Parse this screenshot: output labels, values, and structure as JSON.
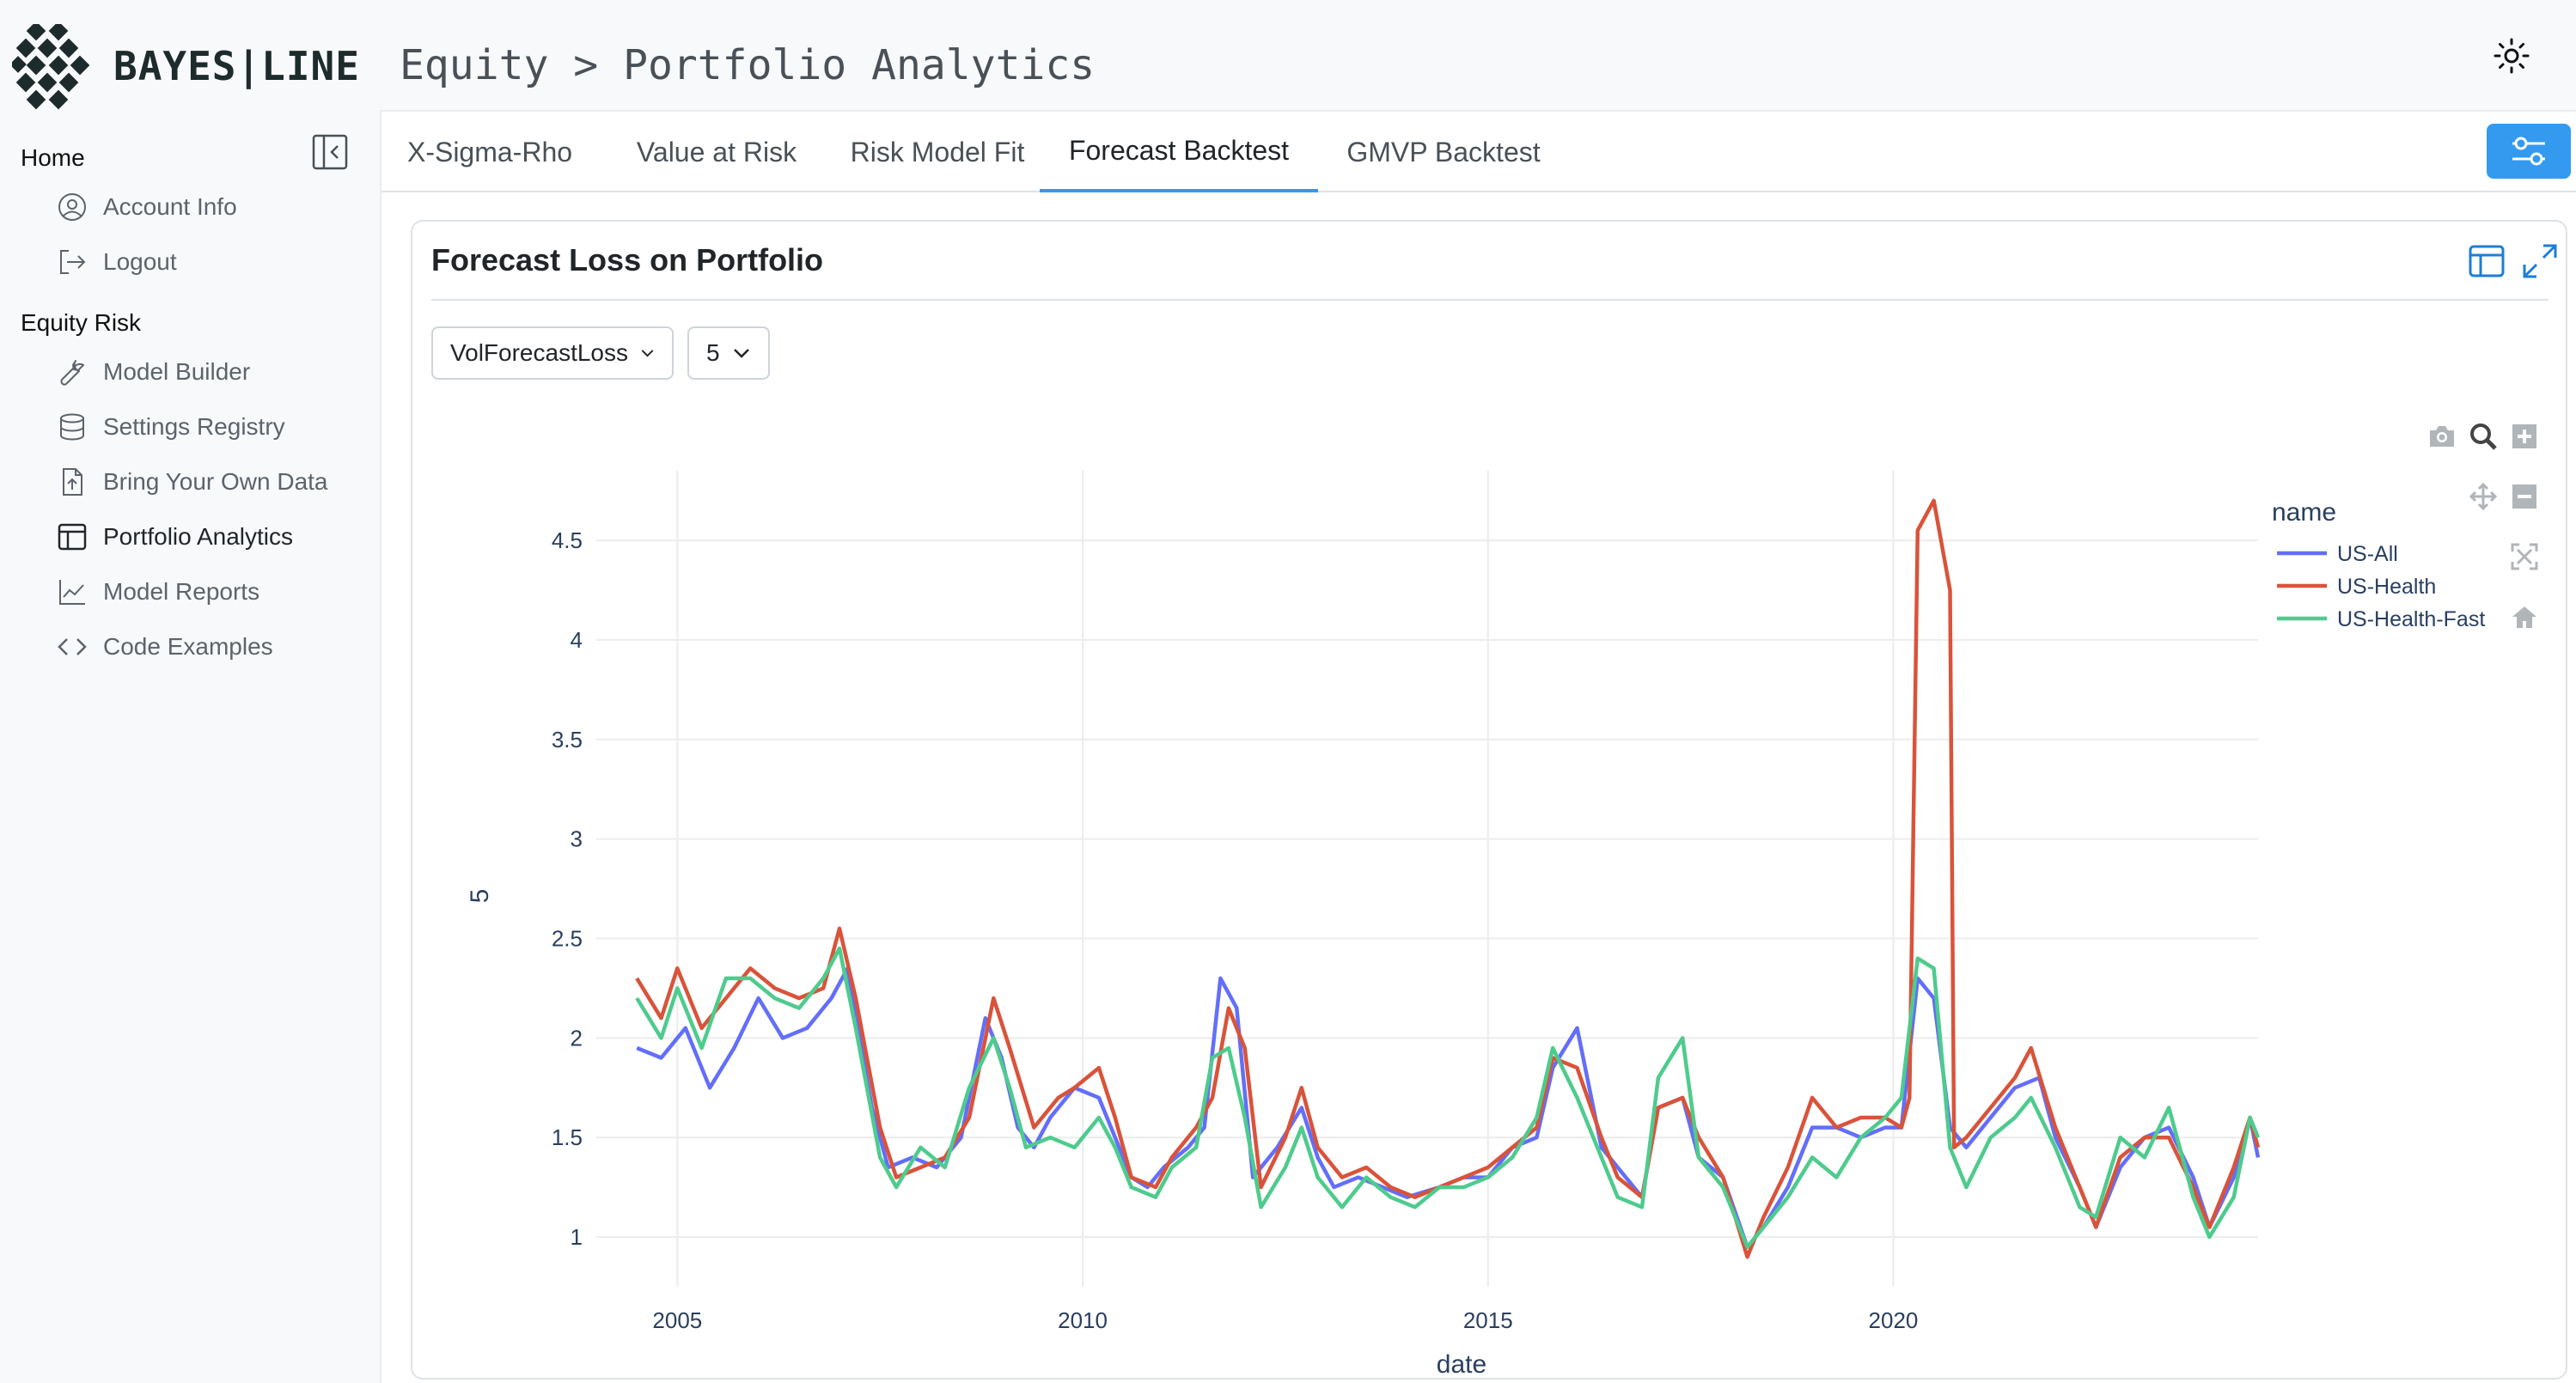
{
  "app": {
    "brand": "BAYES|LINE",
    "breadcrumb": "Equity > Portfolio Analytics"
  },
  "sidebar": {
    "sections": [
      {
        "heading": "Home",
        "items": [
          {
            "label": "Account Info",
            "icon": "user-circle-icon"
          },
          {
            "label": "Logout",
            "icon": "logout-icon"
          }
        ]
      },
      {
        "heading": "Equity Risk",
        "items": [
          {
            "label": "Model Builder",
            "icon": "wrench-icon"
          },
          {
            "label": "Settings Registry",
            "icon": "database-icon"
          },
          {
            "label": "Bring Your Own Data",
            "icon": "file-upload-icon"
          },
          {
            "label": "Portfolio Analytics",
            "icon": "table-icon",
            "active": true
          },
          {
            "label": "Model Reports",
            "icon": "line-chart-icon"
          },
          {
            "label": "Code Examples",
            "icon": "code-icon"
          }
        ]
      }
    ]
  },
  "tabs": [
    {
      "label": "X-Sigma-Rho"
    },
    {
      "label": "Value at Risk"
    },
    {
      "label": "Risk Model Fit"
    },
    {
      "label": "Forecast Backtest",
      "active": true
    },
    {
      "label": "GMVP Backtest"
    }
  ],
  "card": {
    "title": "Forecast Loss on Portfolio",
    "metric_select": "VolForecastLoss",
    "window_select": "5"
  },
  "colors": {
    "accent": "#339af0",
    "us_all": "#636efa",
    "us_health": "#d9533a",
    "us_health_fast": "#4ecb8d"
  },
  "chart_data": {
    "type": "line",
    "title": "",
    "xlabel": "date",
    "ylabel": "5",
    "legend_title": "name",
    "legend_placement": "top-right",
    "x_ticks": [
      "2005",
      "2010",
      "2015",
      "2020"
    ],
    "y_ticks": [
      "1",
      "1.5",
      "2",
      "2.5",
      "3",
      "3.5",
      "4",
      "4.5"
    ],
    "xlim": [
      2004.0,
      2024.5
    ],
    "ylim": [
      0.75,
      4.85
    ],
    "grid": true,
    "series": [
      {
        "name": "US-All",
        "color": "#636efa",
        "points": [
          [
            2004.5,
            1.95
          ],
          [
            2004.8,
            1.9
          ],
          [
            2005.1,
            2.05
          ],
          [
            2005.4,
            1.75
          ],
          [
            2005.7,
            1.95
          ],
          [
            2006.0,
            2.2
          ],
          [
            2006.3,
            2.0
          ],
          [
            2006.6,
            2.05
          ],
          [
            2006.9,
            2.2
          ],
          [
            2007.1,
            2.35
          ],
          [
            2007.4,
            1.65
          ],
          [
            2007.6,
            1.35
          ],
          [
            2007.9,
            1.4
          ],
          [
            2008.2,
            1.35
          ],
          [
            2008.5,
            1.5
          ],
          [
            2008.8,
            2.1
          ],
          [
            2009.0,
            1.9
          ],
          [
            2009.2,
            1.55
          ],
          [
            2009.4,
            1.45
          ],
          [
            2009.6,
            1.6
          ],
          [
            2009.9,
            1.75
          ],
          [
            2010.2,
            1.7
          ],
          [
            2010.4,
            1.5
          ],
          [
            2010.6,
            1.3
          ],
          [
            2010.8,
            1.25
          ],
          [
            2011.0,
            1.35
          ],
          [
            2011.3,
            1.45
          ],
          [
            2011.5,
            1.55
          ],
          [
            2011.7,
            2.3
          ],
          [
            2011.9,
            2.15
          ],
          [
            2012.1,
            1.3
          ],
          [
            2012.4,
            1.45
          ],
          [
            2012.7,
            1.65
          ],
          [
            2012.9,
            1.4
          ],
          [
            2013.1,
            1.25
          ],
          [
            2013.4,
            1.3
          ],
          [
            2013.7,
            1.25
          ],
          [
            2014.0,
            1.2
          ],
          [
            2014.4,
            1.25
          ],
          [
            2014.7,
            1.3
          ],
          [
            2015.0,
            1.3
          ],
          [
            2015.3,
            1.45
          ],
          [
            2015.6,
            1.5
          ],
          [
            2015.8,
            1.85
          ],
          [
            2016.1,
            2.05
          ],
          [
            2016.4,
            1.45
          ],
          [
            2016.7,
            1.3
          ],
          [
            2016.9,
            1.2
          ],
          [
            2017.1,
            1.65
          ],
          [
            2017.4,
            1.7
          ],
          [
            2017.6,
            1.4
          ],
          [
            2017.9,
            1.3
          ],
          [
            2018.2,
            0.95
          ],
          [
            2018.4,
            1.05
          ],
          [
            2018.7,
            1.25
          ],
          [
            2019.0,
            1.55
          ],
          [
            2019.3,
            1.55
          ],
          [
            2019.6,
            1.5
          ],
          [
            2019.9,
            1.55
          ],
          [
            2020.1,
            1.55
          ],
          [
            2020.3,
            2.3
          ],
          [
            2020.5,
            2.2
          ],
          [
            2020.7,
            1.55
          ],
          [
            2020.9,
            1.45
          ],
          [
            2021.2,
            1.6
          ],
          [
            2021.5,
            1.75
          ],
          [
            2021.8,
            1.8
          ],
          [
            2022.0,
            1.5
          ],
          [
            2022.3,
            1.25
          ],
          [
            2022.5,
            1.05
          ],
          [
            2022.8,
            1.35
          ],
          [
            2023.1,
            1.5
          ],
          [
            2023.4,
            1.55
          ],
          [
            2023.7,
            1.3
          ],
          [
            2023.9,
            1.05
          ],
          [
            2024.2,
            1.3
          ],
          [
            2024.4,
            1.6
          ],
          [
            2024.5,
            1.4
          ]
        ]
      },
      {
        "name": "US-Health",
        "color": "#d9533a",
        "points": [
          [
            2004.5,
            2.3
          ],
          [
            2004.8,
            2.1
          ],
          [
            2005.0,
            2.35
          ],
          [
            2005.3,
            2.05
          ],
          [
            2005.6,
            2.2
          ],
          [
            2005.9,
            2.35
          ],
          [
            2006.2,
            2.25
          ],
          [
            2006.5,
            2.2
          ],
          [
            2006.8,
            2.25
          ],
          [
            2007.0,
            2.55
          ],
          [
            2007.2,
            2.2
          ],
          [
            2007.5,
            1.55
          ],
          [
            2007.7,
            1.3
          ],
          [
            2008.0,
            1.35
          ],
          [
            2008.3,
            1.4
          ],
          [
            2008.6,
            1.6
          ],
          [
            2008.9,
            2.2
          ],
          [
            2009.1,
            1.95
          ],
          [
            2009.4,
            1.55
          ],
          [
            2009.7,
            1.7
          ],
          [
            2009.9,
            1.75
          ],
          [
            2010.2,
            1.85
          ],
          [
            2010.4,
            1.6
          ],
          [
            2010.6,
            1.3
          ],
          [
            2010.9,
            1.25
          ],
          [
            2011.1,
            1.4
          ],
          [
            2011.4,
            1.55
          ],
          [
            2011.6,
            1.7
          ],
          [
            2011.8,
            2.15
          ],
          [
            2012.0,
            1.95
          ],
          [
            2012.2,
            1.25
          ],
          [
            2012.5,
            1.5
          ],
          [
            2012.7,
            1.75
          ],
          [
            2012.9,
            1.45
          ],
          [
            2013.2,
            1.3
          ],
          [
            2013.5,
            1.35
          ],
          [
            2013.8,
            1.25
          ],
          [
            2014.1,
            1.2
          ],
          [
            2014.4,
            1.25
          ],
          [
            2014.7,
            1.3
          ],
          [
            2015.0,
            1.35
          ],
          [
            2015.3,
            1.45
          ],
          [
            2015.6,
            1.55
          ],
          [
            2015.8,
            1.9
          ],
          [
            2016.1,
            1.85
          ],
          [
            2016.4,
            1.5
          ],
          [
            2016.6,
            1.3
          ],
          [
            2016.9,
            1.2
          ],
          [
            2017.1,
            1.65
          ],
          [
            2017.4,
            1.7
          ],
          [
            2017.6,
            1.5
          ],
          [
            2017.9,
            1.3
          ],
          [
            2018.2,
            0.9
          ],
          [
            2018.4,
            1.1
          ],
          [
            2018.7,
            1.35
          ],
          [
            2019.0,
            1.7
          ],
          [
            2019.3,
            1.55
          ],
          [
            2019.6,
            1.6
          ],
          [
            2019.9,
            1.6
          ],
          [
            2020.1,
            1.55
          ],
          [
            2020.2,
            1.7
          ],
          [
            2020.3,
            4.55
          ],
          [
            2020.5,
            4.7
          ],
          [
            2020.7,
            4.25
          ],
          [
            2020.75,
            1.45
          ],
          [
            2020.9,
            1.5
          ],
          [
            2021.2,
            1.65
          ],
          [
            2021.5,
            1.8
          ],
          [
            2021.7,
            1.95
          ],
          [
            2022.0,
            1.55
          ],
          [
            2022.3,
            1.25
          ],
          [
            2022.5,
            1.05
          ],
          [
            2022.8,
            1.4
          ],
          [
            2023.1,
            1.5
          ],
          [
            2023.4,
            1.5
          ],
          [
            2023.7,
            1.25
          ],
          [
            2023.9,
            1.05
          ],
          [
            2024.2,
            1.35
          ],
          [
            2024.4,
            1.6
          ],
          [
            2024.5,
            1.45
          ]
        ]
      },
      {
        "name": "US-Health-Fast",
        "color": "#4ecb8d",
        "points": [
          [
            2004.5,
            2.2
          ],
          [
            2004.8,
            2.0
          ],
          [
            2005.0,
            2.25
          ],
          [
            2005.3,
            1.95
          ],
          [
            2005.6,
            2.3
          ],
          [
            2005.9,
            2.3
          ],
          [
            2006.2,
            2.2
          ],
          [
            2006.5,
            2.15
          ],
          [
            2006.8,
            2.3
          ],
          [
            2007.0,
            2.45
          ],
          [
            2007.2,
            2.05
          ],
          [
            2007.5,
            1.4
          ],
          [
            2007.7,
            1.25
          ],
          [
            2008.0,
            1.45
          ],
          [
            2008.3,
            1.35
          ],
          [
            2008.6,
            1.75
          ],
          [
            2008.9,
            2.0
          ],
          [
            2009.1,
            1.75
          ],
          [
            2009.3,
            1.45
          ],
          [
            2009.6,
            1.5
          ],
          [
            2009.9,
            1.45
          ],
          [
            2010.2,
            1.6
          ],
          [
            2010.4,
            1.45
          ],
          [
            2010.6,
            1.25
          ],
          [
            2010.9,
            1.2
          ],
          [
            2011.1,
            1.35
          ],
          [
            2011.4,
            1.45
          ],
          [
            2011.6,
            1.9
          ],
          [
            2011.8,
            1.95
          ],
          [
            2012.0,
            1.6
          ],
          [
            2012.2,
            1.15
          ],
          [
            2012.5,
            1.35
          ],
          [
            2012.7,
            1.55
          ],
          [
            2012.9,
            1.3
          ],
          [
            2013.2,
            1.15
          ],
          [
            2013.5,
            1.3
          ],
          [
            2013.8,
            1.2
          ],
          [
            2014.1,
            1.15
          ],
          [
            2014.4,
            1.25
          ],
          [
            2014.7,
            1.25
          ],
          [
            2015.0,
            1.3
          ],
          [
            2015.3,
            1.4
          ],
          [
            2015.6,
            1.6
          ],
          [
            2015.8,
            1.95
          ],
          [
            2016.1,
            1.7
          ],
          [
            2016.4,
            1.4
          ],
          [
            2016.6,
            1.2
          ],
          [
            2016.9,
            1.15
          ],
          [
            2017.1,
            1.8
          ],
          [
            2017.4,
            2.0
          ],
          [
            2017.6,
            1.4
          ],
          [
            2017.9,
            1.25
          ],
          [
            2018.2,
            0.95
          ],
          [
            2018.4,
            1.05
          ],
          [
            2018.7,
            1.2
          ],
          [
            2019.0,
            1.4
          ],
          [
            2019.3,
            1.3
          ],
          [
            2019.6,
            1.5
          ],
          [
            2019.9,
            1.6
          ],
          [
            2020.1,
            1.7
          ],
          [
            2020.3,
            2.4
          ],
          [
            2020.5,
            2.35
          ],
          [
            2020.7,
            1.45
          ],
          [
            2020.9,
            1.25
          ],
          [
            2021.2,
            1.5
          ],
          [
            2021.5,
            1.6
          ],
          [
            2021.7,
            1.7
          ],
          [
            2022.0,
            1.45
          ],
          [
            2022.3,
            1.15
          ],
          [
            2022.5,
            1.1
          ],
          [
            2022.8,
            1.5
          ],
          [
            2023.1,
            1.4
          ],
          [
            2023.4,
            1.65
          ],
          [
            2023.7,
            1.2
          ],
          [
            2023.9,
            1.0
          ],
          [
            2024.2,
            1.2
          ],
          [
            2024.4,
            1.6
          ],
          [
            2024.5,
            1.5
          ]
        ]
      }
    ]
  }
}
